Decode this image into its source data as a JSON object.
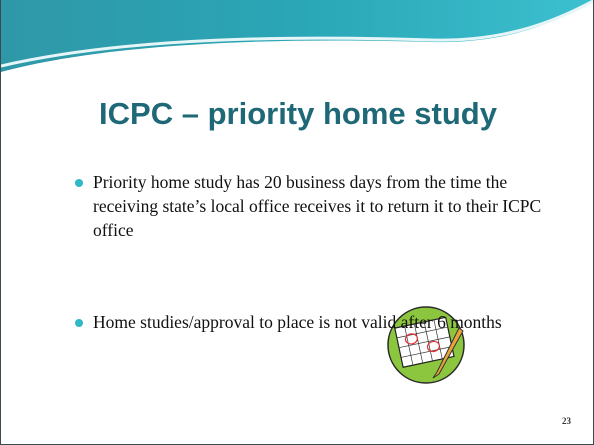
{
  "slide": {
    "title": "ICPC – priority home study",
    "bullets": [
      "Priority home study has 20 business days from the time the receiving state’s local office receives it to return it to their ICPC office",
      "Home studies/approval to place is not valid after 6 months"
    ],
    "page_number": "23"
  }
}
